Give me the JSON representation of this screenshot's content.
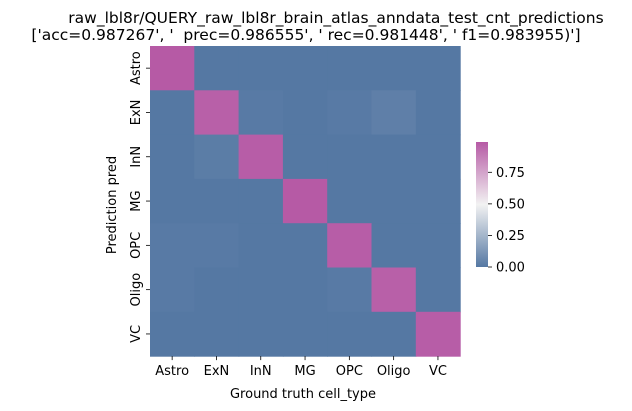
{
  "chart_data": {
    "type": "heatmap",
    "title": "raw_lbl8r/QUERY_raw_lbl8r_brain_atlas_anndata_test_cnt_predictions",
    "subtitle": "['acc=0.987267', '  prec=0.986555', ' rec=0.981448', ' f1=0.983955)']",
    "xlabel": "Ground truth cell_type",
    "ylabel": "Prediction pred",
    "x_categories": [
      "Astro",
      "ExN",
      "InN",
      "MG",
      "OPC",
      "Oligo",
      "VC"
    ],
    "y_categories": [
      "Astro",
      "ExN",
      "InN",
      "MG",
      "OPC",
      "Oligo",
      "VC"
    ],
    "values": [
      [
        0.99,
        0.0,
        0.0,
        0.0,
        0.0,
        0.0,
        0.0
      ],
      [
        0.0,
        0.97,
        0.01,
        0.0,
        0.01,
        0.03,
        0.0
      ],
      [
        0.0,
        0.02,
        0.98,
        0.0,
        0.0,
        0.0,
        0.0
      ],
      [
        0.0,
        0.0,
        0.0,
        0.99,
        0.0,
        0.0,
        0.0
      ],
      [
        0.01,
        0.01,
        0.0,
        0.0,
        0.98,
        0.0,
        0.0
      ],
      [
        0.01,
        0.0,
        0.0,
        0.0,
        0.01,
        0.97,
        0.0
      ],
      [
        0.0,
        0.0,
        0.0,
        0.0,
        0.0,
        0.0,
        0.98
      ]
    ],
    "colorbar": {
      "range": [
        0,
        0.99
      ],
      "ticks": [
        "0.00",
        "0.25",
        "0.50",
        "0.75"
      ],
      "tick_values": [
        0,
        0.25,
        0.5,
        0.75
      ],
      "colors": [
        "#5578a3",
        "#f2f2f2",
        "#b65aa5"
      ]
    },
    "grid": false
  }
}
